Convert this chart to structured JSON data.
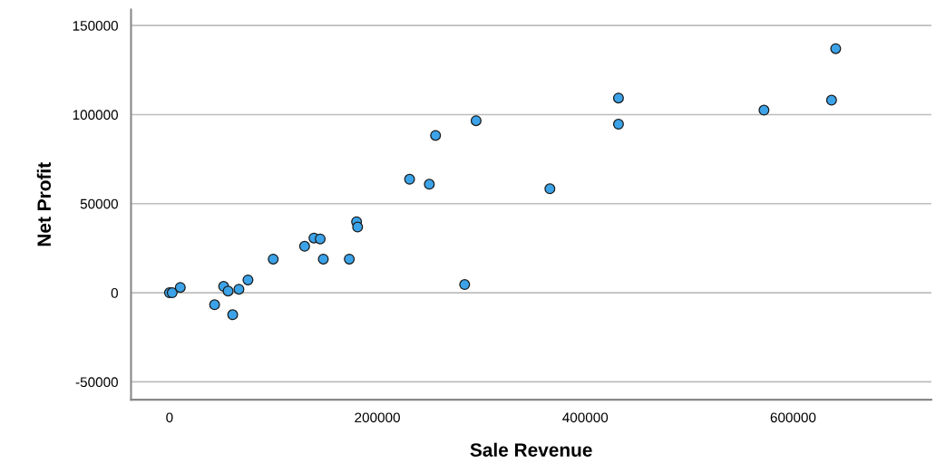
{
  "chart_data": {
    "type": "scatter",
    "xlabel": "Sale Revenue",
    "ylabel": "Net Profit",
    "x": [
      0,
      1700,
      2600,
      4300,
      7800,
      10400,
      43400,
      52100,
      53800,
      56400,
      60800,
      66800,
      75500,
      99800,
      130000,
      139000,
      145000,
      148000,
      173000,
      180000,
      181000,
      231000,
      250000,
      256000,
      284000,
      295000,
      366000,
      432000,
      432000,
      572000,
      637000,
      641000
    ],
    "values": [
      0,
      null,
      0,
      null,
      null,
      3000,
      -6700,
      3600,
      null,
      1000,
      -12300,
      2000,
      7200,
      18900,
      26100,
      30700,
      30200,
      18900,
      18900,
      39900,
      36900,
      63700,
      60900,
      88300,
      4600,
      96600,
      58400,
      109300,
      94600,
      102500,
      108100,
      137000
    ],
    "color": "#3ca3e8",
    "marker": "circle",
    "xlim": [
      -37000,
      733000
    ],
    "xticks": [
      0,
      200000,
      400000,
      600000
    ],
    "ylim": [
      -60000,
      159000
    ],
    "yticks": [
      -50000,
      0,
      50000,
      100000,
      150000
    ],
    "grid": "y"
  }
}
